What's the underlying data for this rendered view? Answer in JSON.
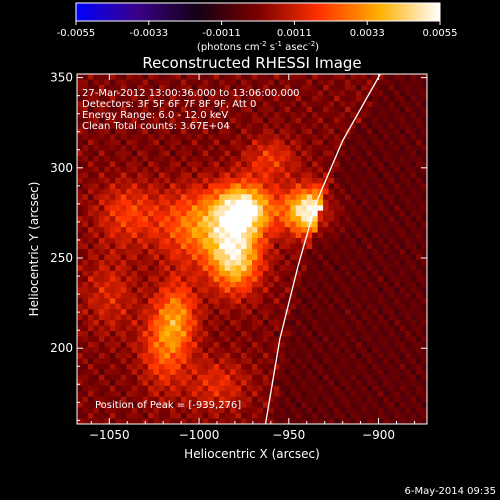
{
  "chart_data": {
    "type": "heatmap",
    "title": "Reconstructed RHESSI Image",
    "xlabel": "Heliocentric X (arcsec)",
    "ylabel": "Heliocentric Y (arcsec)",
    "xlim": [
      -1068,
      -873
    ],
    "ylim": [
      158,
      352
    ],
    "x_ticks": [
      -1050,
      -1000,
      -950,
      -900
    ],
    "y_ticks": [
      200,
      250,
      300,
      350
    ],
    "colorbar": {
      "min": -0.0055,
      "max": 0.0055,
      "ticks": [
        "-0.0055",
        "-0.0033",
        "-0.0011",
        "0.0011",
        "0.0033",
        "0.0055"
      ],
      "unit_text": "(photons cm",
      "unit_exp1": "-2",
      "unit_text2": " s",
      "unit_exp2": "-1",
      "unit_text3": " asec",
      "unit_exp3": "-2",
      "unit_close": ")",
      "colors": [
        "#0000ff",
        "#3a0088",
        "#140014",
        "#7a0000",
        "#ff3000",
        "#ffb000",
        "#ffffff"
      ]
    },
    "annotations": [
      "27-Mar-2012 13:00:36.000 to 13:06:00.000",
      "Detectors: 3F 5F 6F 7F 8F 9F, Att 0",
      "Energy Range: 6.0 - 12.0 keV",
      "Clean    Total counts: 3.67E+04"
    ],
    "peak_label": "Position of Peak = [-939,276]",
    "peak": [
      -939,
      276
    ],
    "sources": [
      {
        "x": -938,
        "y": 276,
        "amp": 0.0056,
        "sx": 10,
        "sy": 9
      },
      {
        "x": -975,
        "y": 277,
        "amp": 0.0053,
        "sx": 11,
        "sy": 10
      },
      {
        "x": -980,
        "y": 250,
        "amp": 0.0045,
        "sx": 10,
        "sy": 13
      },
      {
        "x": -1000,
        "y": 268,
        "amp": 0.003,
        "sx": 16,
        "sy": 14
      },
      {
        "x": -1012,
        "y": 218,
        "amp": 0.0026,
        "sx": 8,
        "sy": 14
      },
      {
        "x": -1020,
        "y": 200,
        "amp": 0.0022,
        "sx": 9,
        "sy": 16
      },
      {
        "x": -1040,
        "y": 275,
        "amp": 0.0018,
        "sx": 12,
        "sy": 12
      },
      {
        "x": -960,
        "y": 305,
        "amp": 0.0017,
        "sx": 10,
        "sy": 8
      },
      {
        "x": -990,
        "y": 180,
        "amp": 0.0015,
        "sx": 12,
        "sy": 10
      },
      {
        "x": -1050,
        "y": 230,
        "amp": 0.0013,
        "sx": 10,
        "sy": 15
      }
    ],
    "limb": [
      [
        -899,
        352
      ],
      [
        -920,
        315
      ],
      [
        -935,
        280
      ],
      [
        -945,
        245
      ],
      [
        -955,
        205
      ],
      [
        -963,
        158
      ]
    ],
    "timestamp": "6-May-2014 09:35"
  }
}
